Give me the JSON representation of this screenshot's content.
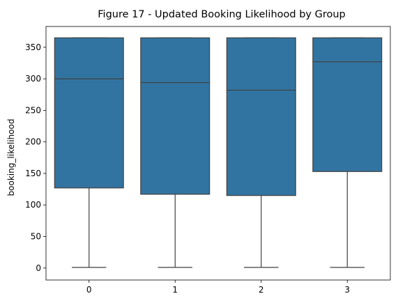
{
  "chart_data": {
    "type": "box",
    "title": "Figure 17 - Updated Booking Likelihood by Group",
    "xlabel": "",
    "ylabel": "booking_likelihood",
    "categories": [
      "0",
      "1",
      "2",
      "3"
    ],
    "boxes": [
      {
        "category": "0",
        "min": 1,
        "q1": 127,
        "median": 300,
        "q3": 365,
        "max": 365
      },
      {
        "category": "1",
        "min": 1,
        "q1": 117,
        "median": 294,
        "q3": 365,
        "max": 365
      },
      {
        "category": "2",
        "min": 1,
        "q1": 115,
        "median": 282,
        "q3": 365,
        "max": 365
      },
      {
        "category": "3",
        "min": 1,
        "q1": 153,
        "median": 327,
        "q3": 365,
        "max": 365
      }
    ],
    "ylim": [
      -19,
      383
    ],
    "yticks": [
      0,
      50,
      100,
      150,
      200,
      250,
      300,
      350
    ],
    "grid": false,
    "legend": "none",
    "color": "#3274a1",
    "edge_color": "#3f3f3f"
  }
}
